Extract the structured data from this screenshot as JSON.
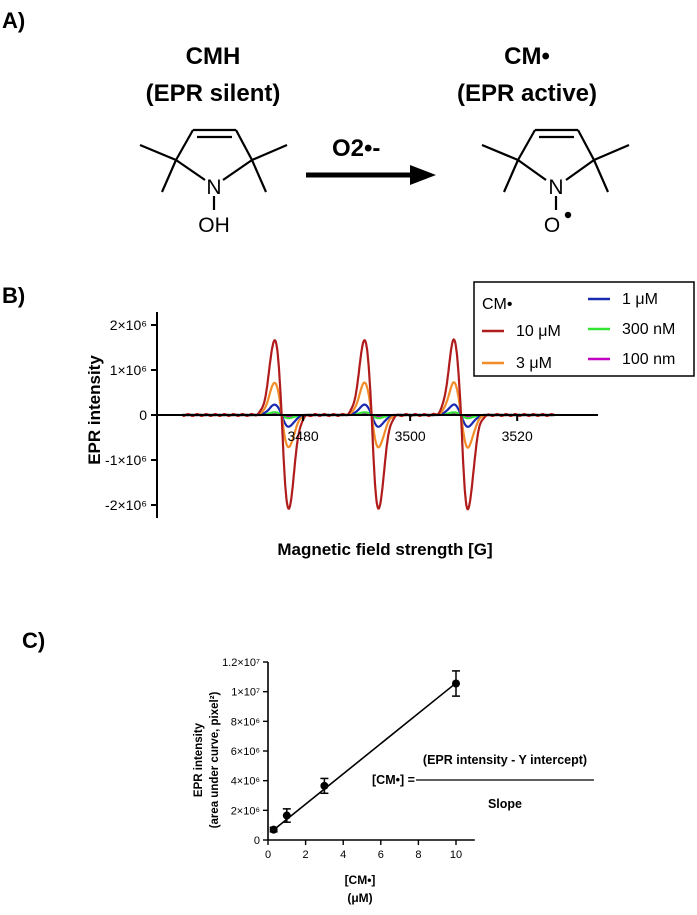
{
  "panels": {
    "a": "A)",
    "b": "B)",
    "c": "C)"
  },
  "scheme": {
    "reactant_name": "CMH",
    "reactant_state": "(EPR silent)",
    "product_name": "CM•",
    "product_state": "(EPR active)",
    "reagent": "O2•-",
    "atoms": {
      "n": "N",
      "oh": "OH",
      "o": "O"
    }
  },
  "chart_data": [
    {
      "type": "line",
      "xlabel": "Magnetic field strength [G]",
      "ylabel": "EPR intensity",
      "xlim": [
        3457,
        3528
      ],
      "ylim": [
        -2200000,
        2200000
      ],
      "y_ticks": [
        "2×10⁶",
        "1×10⁶",
        "0",
        "-1×10⁶",
        "-2×10⁶"
      ],
      "y_tick_values": [
        2000000,
        1000000,
        0,
        -1000000,
        -2000000
      ],
      "x_ticks": [
        "3480",
        "3500",
        "3520"
      ],
      "x_tick_values": [
        3480,
        3500,
        3520
      ],
      "legend_title": "CM•",
      "legend_position": "top-right",
      "line_centers": [
        3476.0,
        3492.8,
        3509.5
      ],
      "line_halfwidth": 1.3,
      "series": [
        {
          "name": "10 μM",
          "color": "#b01c1c",
          "peak_positive": 1680000,
          "peak_negative": -2100000
        },
        {
          "name": "3 μM",
          "color": "#f28c28",
          "peak_positive": 720000,
          "peak_negative": -720000
        },
        {
          "name": "1 μM",
          "color": "#1a2ab0",
          "peak_positive": 230000,
          "peak_negative": -260000
        },
        {
          "name": "300 nM",
          "color": "#33e633",
          "peak_positive": 60000,
          "peak_negative": -70000
        },
        {
          "name": "100 nm",
          "color": "#c400c4",
          "peak_positive": 25000,
          "peak_negative": -30000
        }
      ]
    },
    {
      "type": "scatter",
      "xlabel": "[CM•]",
      "xunit": "(μM)",
      "ylabel_line1": "EPR intensity",
      "ylabel_line2": "(area under curve, pixel²)",
      "xlim": [
        0,
        11
      ],
      "ylim": [
        0,
        12000000
      ],
      "x_ticks": [
        "0",
        "2",
        "4",
        "6",
        "8",
        "10"
      ],
      "x_tick_values": [
        0,
        2,
        4,
        6,
        8,
        10
      ],
      "y_ticks": [
        "0",
        "2×10⁶",
        "4×10⁶",
        "6×10⁶",
        "8×10⁶",
        "1×10⁷",
        "1.2×10⁷"
      ],
      "y_tick_values": [
        0,
        2000000,
        4000000,
        6000000,
        8000000,
        10000000,
        12000000
      ],
      "points": [
        {
          "x": 0.3,
          "y": 700000,
          "err": 150000
        },
        {
          "x": 1,
          "y": 1650000,
          "err": 450000
        },
        {
          "x": 3,
          "y": 3650000,
          "err": 500000
        },
        {
          "x": 10,
          "y": 10550000,
          "err": 850000
        }
      ],
      "fit_line": {
        "x": [
          0.3,
          10
        ],
        "y": [
          680000,
          10580000
        ]
      },
      "equation": {
        "lhs": "[CM•] =",
        "numerator": "(EPR intensity - Y intercept)",
        "denominator": "Slope"
      }
    }
  ]
}
